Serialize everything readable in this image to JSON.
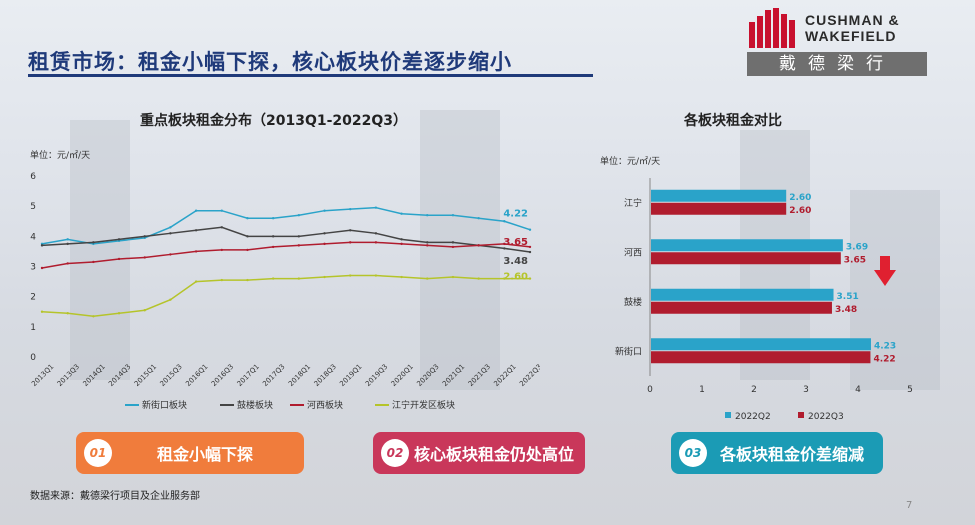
{
  "header": {
    "title": "租赁市场：租金小幅下探，核心板块价差逐步缩小",
    "logo_line1": "CUSHMAN &",
    "logo_line2": "WAKEFIELD",
    "logo_cn": "戴德梁行",
    "brand_color": "#c8102e",
    "title_color": "#1f3a7a"
  },
  "chart_data": [
    {
      "type": "line",
      "title": "重点板块租金分布（2013Q1-2022Q3）",
      "unit_label": "单位：元/㎡/天",
      "ylim": [
        0,
        6
      ],
      "yticks": [
        0,
        1,
        2,
        3,
        4,
        5,
        6
      ],
      "x": [
        "2013Q1",
        "2013Q3",
        "2014Q1",
        "2014Q3",
        "2015Q1",
        "2015Q3",
        "2016Q1",
        "2016Q3",
        "2017Q1",
        "2017Q3",
        "2018Q1",
        "2018Q3",
        "2019Q1",
        "2019Q3",
        "2020Q1",
        "2020Q3",
        "2021Q1",
        "2021Q3",
        "2022Q1",
        "2022Q3"
      ],
      "series": [
        {
          "name": "新街口板块",
          "color": "#2aa3c9",
          "end_label": "4.22",
          "values": [
            3.75,
            3.9,
            3.75,
            3.85,
            3.95,
            4.3,
            4.85,
            4.85,
            4.6,
            4.6,
            4.7,
            4.85,
            4.9,
            4.95,
            4.75,
            4.7,
            4.7,
            4.6,
            4.5,
            4.22
          ]
        },
        {
          "name": "鼓楼板块",
          "color": "#444444",
          "end_label": "3.48",
          "values": [
            3.7,
            3.75,
            3.8,
            3.9,
            4.0,
            4.1,
            4.2,
            4.3,
            4.0,
            4.0,
            4.0,
            4.1,
            4.2,
            4.1,
            3.9,
            3.8,
            3.8,
            3.7,
            3.6,
            3.48
          ]
        },
        {
          "name": "河西板块",
          "color": "#b01c2e",
          "end_label": "3.65",
          "values": [
            2.95,
            3.1,
            3.15,
            3.25,
            3.3,
            3.4,
            3.5,
            3.55,
            3.55,
            3.65,
            3.7,
            3.75,
            3.8,
            3.8,
            3.75,
            3.7,
            3.65,
            3.7,
            3.75,
            3.65
          ]
        },
        {
          "name": "江宁开发区板块",
          "color": "#b5c42a",
          "end_label": "2.60",
          "values": [
            1.5,
            1.45,
            1.35,
            1.45,
            1.55,
            1.9,
            2.5,
            2.55,
            2.55,
            2.6,
            2.6,
            2.65,
            2.7,
            2.7,
            2.65,
            2.6,
            2.65,
            2.6,
            2.6,
            2.6
          ]
        }
      ]
    },
    {
      "type": "bar",
      "orientation": "horizontal",
      "title": "各板块租金对比",
      "unit_label": "单位：元/㎡/天",
      "xlim": [
        0,
        5
      ],
      "xticks": [
        0,
        1,
        2,
        3,
        4,
        5
      ],
      "categories": [
        "江宁",
        "河西",
        "鼓楼",
        "新街口"
      ],
      "series": [
        {
          "name": "2022Q2",
          "color": "#2aa3c9",
          "values": [
            2.6,
            3.69,
            3.51,
            4.23
          ],
          "labels": [
            "2.60",
            "3.69",
            "3.51",
            "4.23"
          ]
        },
        {
          "name": "2022Q3",
          "color": "#b01c2e",
          "values": [
            2.6,
            3.65,
            3.48,
            4.22
          ],
          "labels": [
            "2.60",
            "3.65",
            "3.48",
            "4.22"
          ]
        }
      ]
    }
  ],
  "highlights": [
    {
      "num": "01",
      "text": "租金小幅下探",
      "color": "#f07c3c"
    },
    {
      "num": "02",
      "text": "核心板块租金仍处高位",
      "color": "#c9375a"
    },
    {
      "num": "03",
      "text": "各板块租金价差缩减",
      "color": "#1b9bb5"
    }
  ],
  "footer": {
    "source": "数据来源：戴德梁行项目及企业服务部",
    "page": "7"
  }
}
